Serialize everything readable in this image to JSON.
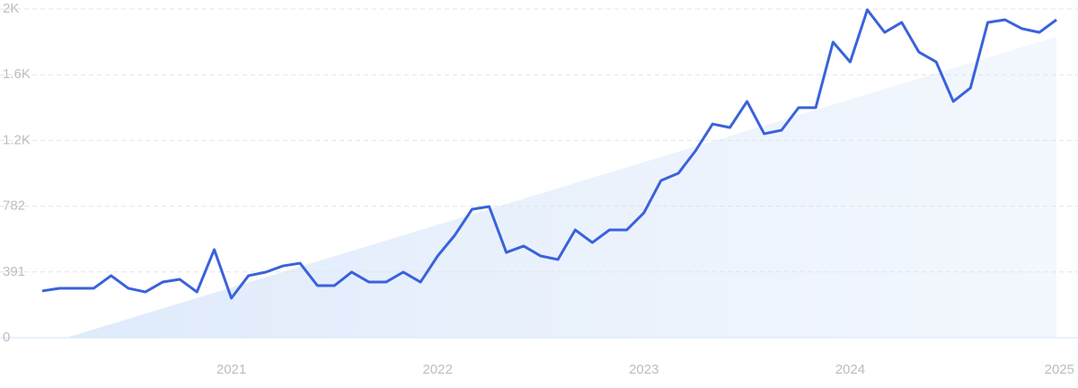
{
  "chart_data": {
    "type": "line",
    "x": [
      2020.083,
      2020.167,
      2020.25,
      2020.333,
      2020.417,
      2020.5,
      2020.583,
      2020.667,
      2020.75,
      2020.833,
      2020.917,
      2021,
      2021.083,
      2021.167,
      2021.25,
      2021.333,
      2021.417,
      2021.5,
      2021.583,
      2021.667,
      2021.75,
      2021.833,
      2021.917,
      2022,
      2022.083,
      2022.167,
      2022.25,
      2022.333,
      2022.417,
      2022.5,
      2022.583,
      2022.667,
      2022.75,
      2022.833,
      2022.917,
      2023,
      2023.083,
      2023.167,
      2023.25,
      2023.333,
      2023.417,
      2023.5,
      2023.583,
      2023.667,
      2023.75,
      2023.833,
      2023.917,
      2024,
      2024.083,
      2024.167,
      2024.25,
      2024.333,
      2024.417,
      2024.5,
      2024.583,
      2024.667,
      2024.75,
      2024.833,
      2024.917,
      2025
    ],
    "series": [
      {
        "color": "#3a62db",
        "values": [
          278,
          294,
          294,
          294,
          369,
          294,
          272,
          331,
          347,
          272,
          524,
          235,
          369,
          390,
          427,
          443,
          310,
          310,
          390,
          331,
          331,
          390,
          331,
          486,
          609,
          764,
          780,
          507,
          545,
          486,
          465,
          641,
          566,
          641,
          641,
          743,
          935,
          978,
          1111,
          1271,
          1250,
          1405,
          1213,
          1234,
          1368,
          1368,
          1758,
          1640,
          1950,
          1816,
          1875,
          1699,
          1640,
          1405,
          1485,
          1875,
          1891,
          1838,
          1816,
          1891
        ]
      }
    ],
    "trend": {
      "color": "#dbe8fa",
      "x": [
        2020.2,
        2025
      ],
      "values": [
        0,
        1790
      ]
    },
    "xlim": [
      2020.083,
      2025
    ],
    "xticks": [
      2021,
      2022,
      2023,
      2024,
      2025
    ],
    "ylim": [
      0,
      1955
    ],
    "yticks": [
      0,
      391,
      782,
      {
        "value": 1173,
        "label": "1.2K"
      },
      {
        "value": 1564,
        "label": "1.6K"
      },
      {
        "value": 1955,
        "label": "2K"
      }
    ],
    "grid": true
  }
}
